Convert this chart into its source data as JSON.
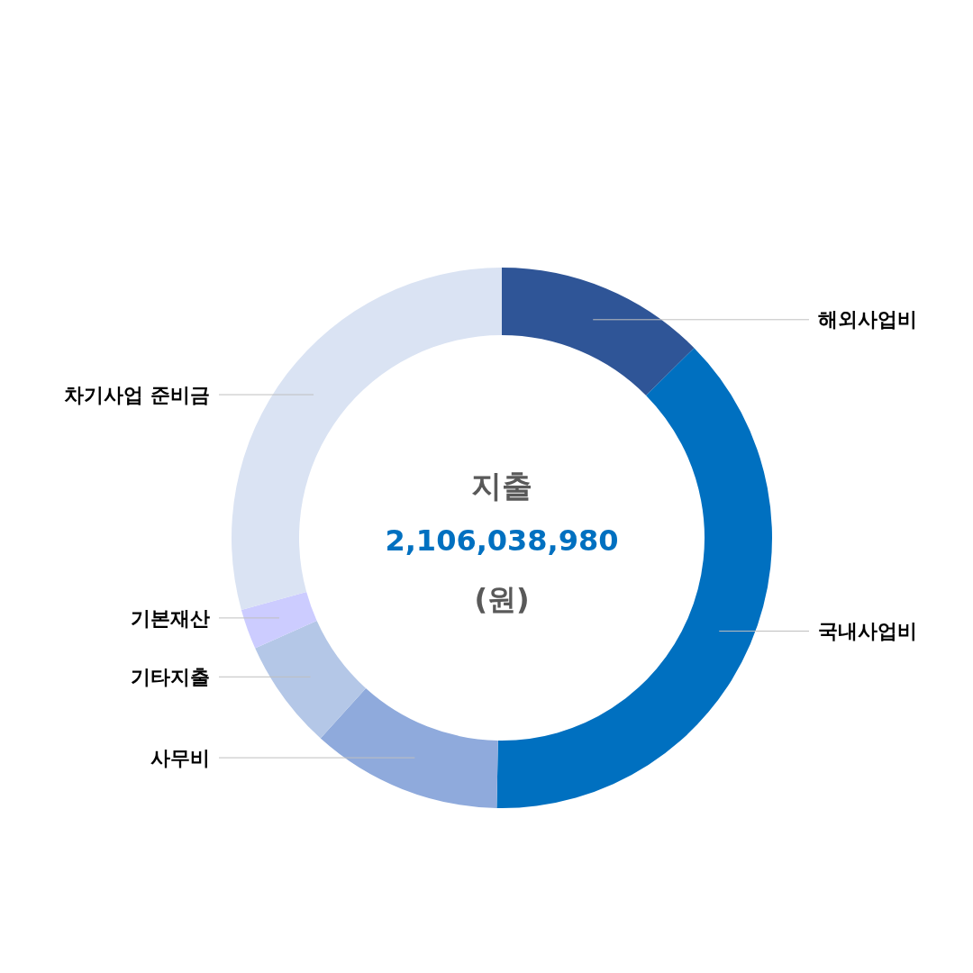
{
  "chart_data": {
    "type": "donut",
    "title": "지출",
    "subtitle": "2,106,038,980",
    "annotations": [
      "(원)"
    ],
    "categories": [
      "해외사업비",
      "국내사업비",
      "사무비",
      "기타지출",
      "기본재산",
      "차기사업 준비금"
    ],
    "values": [
      12.6,
      37.7,
      11.4,
      6.6,
      2.4,
      29.3
    ],
    "colors": [
      "#2f5597",
      "#0070c0",
      "#8faadc",
      "#b4c7e7",
      "#ccccff",
      "#dae3f3"
    ]
  }
}
